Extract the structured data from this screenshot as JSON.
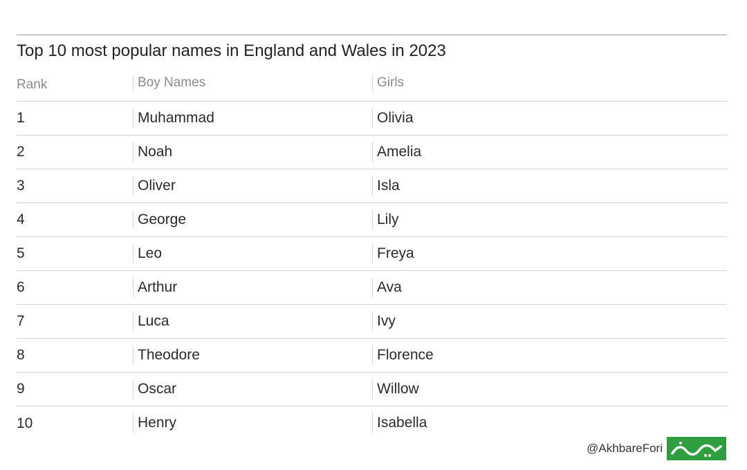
{
  "title": "Top 10 most popular names in England and Wales in 2023",
  "columns": {
    "rank": "Rank",
    "boys": "Boy Names",
    "girls": "Girls"
  },
  "rows": [
    {
      "rank": "1",
      "boy": "Muhammad",
      "girl": "Olivia"
    },
    {
      "rank": "2",
      "boy": "Noah",
      "girl": "Amelia"
    },
    {
      "rank": "3",
      "boy": "Oliver",
      "girl": "Isla"
    },
    {
      "rank": "4",
      "boy": "George",
      "girl": "Lily"
    },
    {
      "rank": "5",
      "boy": "Leo",
      "girl": "Freya"
    },
    {
      "rank": "6",
      "boy": "Arthur",
      "girl": "Ava"
    },
    {
      "rank": "7",
      "boy": "Luca",
      "girl": "Ivy"
    },
    {
      "rank": "8",
      "boy": "Theodore",
      "girl": "Florence"
    },
    {
      "rank": "9",
      "boy": "Oscar",
      "girl": "Willow"
    },
    {
      "rank": "10",
      "boy": "Henry",
      "girl": "Isabella"
    }
  ],
  "footer": {
    "handle": "@AkhbareFori",
    "logo_icon": "akhbare-fori-logo-icon",
    "logo_text": "خبرفوری",
    "logo_color": "#2e9e3e"
  }
}
